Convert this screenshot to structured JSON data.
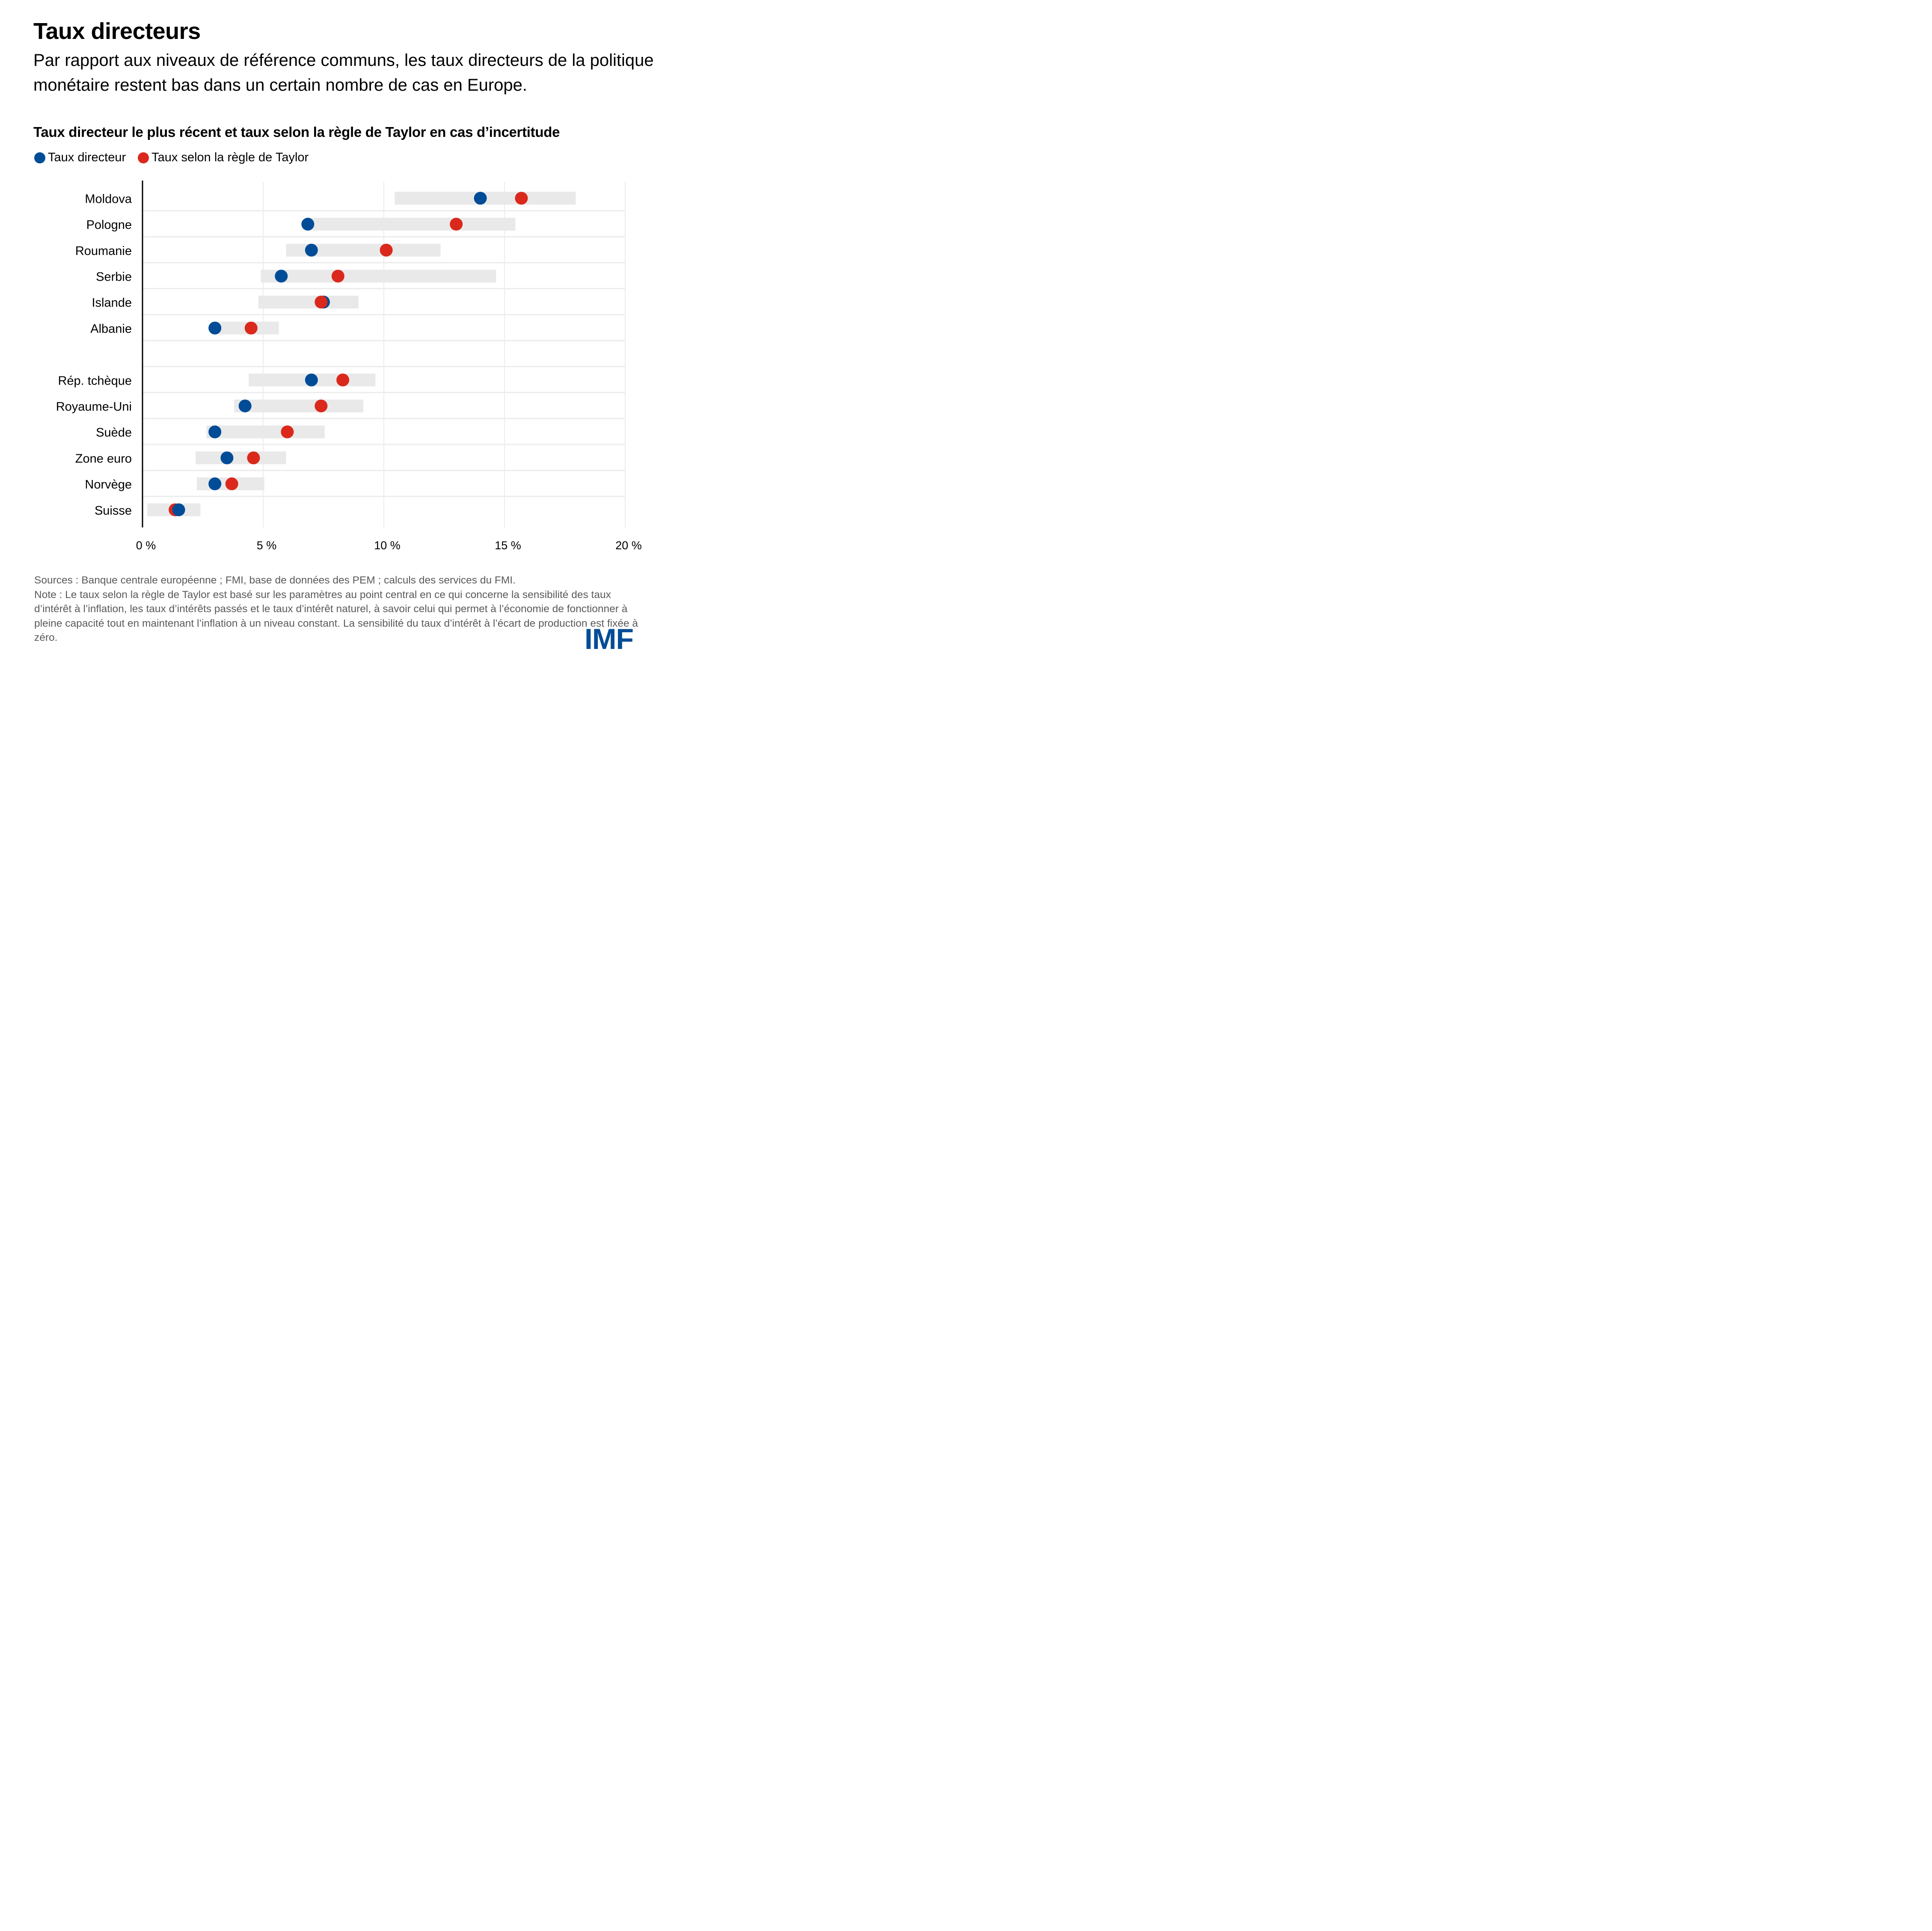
{
  "header": {
    "title": "Taux directeurs",
    "subtitle": "Par rapport aux niveaux de référence communs, les taux directeurs de la politique monétaire restent bas dans un certain nombre de cas en Europe."
  },
  "legend": {
    "items": [
      {
        "label": "Taux directeur",
        "color": "#004c97"
      },
      {
        "label": "Taux selon la règle de Taylor",
        "color": "#da291c"
      }
    ]
  },
  "chart_data": {
    "type": "dot-range",
    "title": "Taux directeur le plus récent et taux selon la règle de Taylor en cas d’incertitude",
    "xlabel": "",
    "ylabel": "",
    "xlim": [
      0,
      20
    ],
    "x_ticks": [
      0,
      5,
      10,
      15,
      20
    ],
    "x_tick_labels": [
      "0 %",
      "5 %",
      "10 %",
      "15 %",
      "20 %"
    ],
    "grid": true,
    "legend_position": "top-left",
    "colors": {
      "policy_rate": "#004c97",
      "taylor_rate": "#da291c",
      "range": "#e9e9e9"
    },
    "groups": [
      {
        "rows": [
          {
            "country": "Moldova",
            "range": [
              10.45,
              17.95
            ],
            "policy_rate": 14.0,
            "taylor_rate": 15.7
          },
          {
            "country": "Pologne",
            "range": [
              6.85,
              15.45
            ],
            "policy_rate": 6.85,
            "taylor_rate": 13.0
          },
          {
            "country": "Roumanie",
            "range": [
              5.95,
              12.35
            ],
            "policy_rate": 7.0,
            "taylor_rate": 10.1
          },
          {
            "country": "Serbie",
            "range": [
              4.9,
              14.65
            ],
            "policy_rate": 5.75,
            "taylor_rate": 8.1
          },
          {
            "country": "Islande",
            "range": [
              4.8,
              8.95
            ],
            "policy_rate": 7.5,
            "taylor_rate": 7.4
          },
          {
            "country": "Albanie",
            "range": [
              3.0,
              5.65
            ],
            "policy_rate": 3.0,
            "taylor_rate": 4.5
          }
        ]
      },
      {
        "rows": [
          {
            "country": "Rép. tchèque",
            "range": [
              4.4,
              9.65
            ],
            "policy_rate": 7.0,
            "taylor_rate": 8.3
          },
          {
            "country": "Royaume-Uni",
            "range": [
              3.8,
              9.15
            ],
            "policy_rate": 4.25,
            "taylor_rate": 7.4
          },
          {
            "country": "Suède",
            "range": [
              2.65,
              7.55
            ],
            "policy_rate": 3.0,
            "taylor_rate": 6.0
          },
          {
            "country": "Zone euro",
            "range": [
              2.2,
              5.95
            ],
            "policy_rate": 3.5,
            "taylor_rate": 4.6
          },
          {
            "country": "Norvège",
            "range": [
              2.25,
              5.05
            ],
            "policy_rate": 3.0,
            "taylor_rate": 3.7
          },
          {
            "country": "Suisse",
            "range": [
              0.2,
              2.4
            ],
            "policy_rate": 1.5,
            "taylor_rate": 1.35
          }
        ]
      }
    ]
  },
  "footer": {
    "sources": "Sources : Banque centrale européenne ; FMI, base de données des PEM ; calculs des services du FMI.",
    "note": "Note : Le taux selon la règle de Taylor est basé sur les paramètres au point central en ce qui concerne la sensibilité des taux d’intérêt à l’inflation, les taux d’intérêts passés et le taux d’intérêt naturel, à savoir celui qui permet à l’économie de fonctionner à pleine capacité tout en maintenant l’inflation à un niveau constant. La sensibilité du taux d’intérêt à l’écart de production est fixée à zéro.",
    "logo": "IMF"
  }
}
